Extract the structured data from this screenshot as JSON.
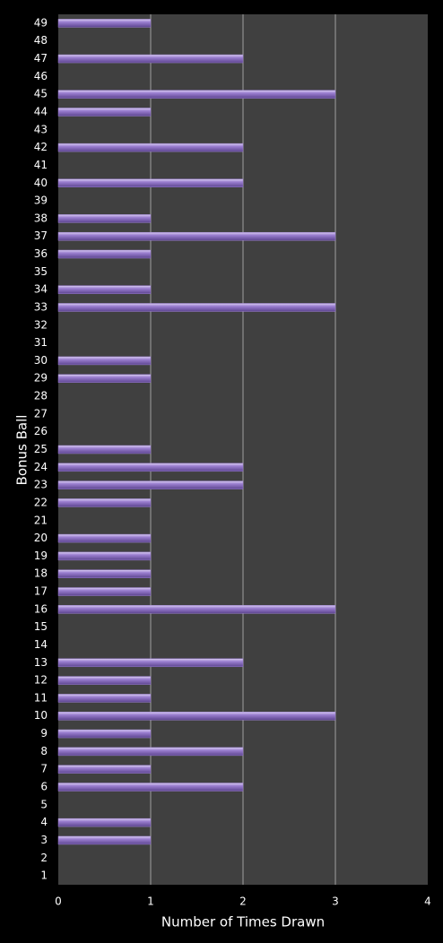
{
  "chart_data": {
    "type": "bar",
    "orientation": "horizontal",
    "x_label": "Number of Times Drawn",
    "y_label": "Bonus Ball",
    "categories": [
      "1",
      "2",
      "3",
      "4",
      "5",
      "6",
      "7",
      "8",
      "9",
      "10",
      "11",
      "12",
      "13",
      "14",
      "15",
      "16",
      "17",
      "18",
      "19",
      "20",
      "21",
      "22",
      "23",
      "24",
      "25",
      "26",
      "27",
      "28",
      "29",
      "30",
      "31",
      "32",
      "33",
      "34",
      "35",
      "36",
      "37",
      "38",
      "39",
      "40",
      "41",
      "42",
      "43",
      "44",
      "45",
      "46",
      "47",
      "48",
      "49"
    ],
    "values": [
      0,
      0,
      1,
      1,
      0,
      2,
      1,
      2,
      1,
      3,
      1,
      1,
      2,
      0,
      0,
      3,
      1,
      1,
      1,
      1,
      0,
      1,
      2,
      2,
      1,
      0,
      0,
      0,
      1,
      1,
      0,
      0,
      3,
      1,
      0,
      1,
      3,
      1,
      0,
      2,
      0,
      2,
      0,
      1,
      3,
      0,
      2,
      0,
      1
    ],
    "color": "#9b7fd0",
    "xlim": [
      0,
      4
    ],
    "xticks": [
      0,
      1,
      2,
      3,
      4
    ],
    "grid": true
  }
}
